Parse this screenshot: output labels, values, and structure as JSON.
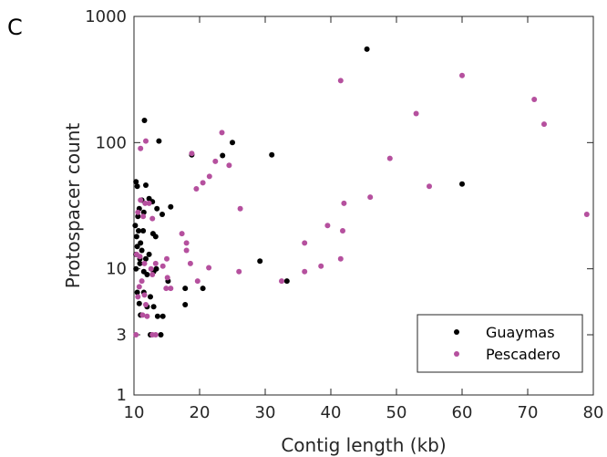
{
  "panel_label": "C",
  "chart_data": {
    "type": "scatter",
    "xlabel": "Contig length (kb)",
    "ylabel": "Protospacer count",
    "xlim": [
      10,
      80
    ],
    "ylim": [
      1,
      1000
    ],
    "yscale": "log",
    "xticks": [
      10,
      20,
      30,
      40,
      50,
      60,
      70,
      80
    ],
    "xtick_labels": [
      "10",
      "20",
      "30",
      "40",
      "50",
      "60",
      "70",
      "80"
    ],
    "yticks": [
      1,
      3,
      10,
      100,
      1000
    ],
    "ytick_labels": [
      "1",
      "3",
      "10",
      "100",
      "1000"
    ],
    "grid": false,
    "legend_position": "bottom-right",
    "series": [
      {
        "name": "Guaymas",
        "color": "#000000",
        "points": [
          [
            45.5,
            550
          ],
          [
            11.6,
            150
          ],
          [
            13.8,
            103
          ],
          [
            25.0,
            100
          ],
          [
            31.0,
            80
          ],
          [
            23.5,
            79
          ],
          [
            18.8,
            80
          ],
          [
            60.0,
            47
          ],
          [
            10.3,
            49
          ],
          [
            10.5,
            45
          ],
          [
            11.8,
            46
          ],
          [
            12.3,
            36
          ],
          [
            12.8,
            34
          ],
          [
            11.2,
            35
          ],
          [
            10.8,
            30
          ],
          [
            11.5,
            28
          ],
          [
            10.6,
            26
          ],
          [
            13.5,
            30
          ],
          [
            14.3,
            27
          ],
          [
            15.6,
            31
          ],
          [
            10.2,
            22
          ],
          [
            10.7,
            20
          ],
          [
            11.4,
            20
          ],
          [
            10.4,
            18
          ],
          [
            11.0,
            16
          ],
          [
            12.9,
            19
          ],
          [
            13.3,
            18
          ],
          [
            10.5,
            15
          ],
          [
            11.2,
            14
          ],
          [
            10.3,
            13
          ],
          [
            10.9,
            12
          ],
          [
            11.8,
            12
          ],
          [
            12.3,
            13
          ],
          [
            10.3,
            10
          ],
          [
            10.9,
            11
          ],
          [
            13.4,
            10
          ],
          [
            11.5,
            9.5
          ],
          [
            12.0,
            9
          ],
          [
            13.0,
            9.5
          ],
          [
            15.2,
            8
          ],
          [
            17.8,
            7
          ],
          [
            20.5,
            7
          ],
          [
            29.2,
            11.5
          ],
          [
            33.3,
            8
          ],
          [
            10.5,
            6.5
          ],
          [
            11.5,
            6.5
          ],
          [
            12.5,
            6
          ],
          [
            10.8,
            5.3
          ],
          [
            12.0,
            5
          ],
          [
            13.0,
            5
          ],
          [
            17.8,
            5.2
          ],
          [
            11.0,
            4.3
          ],
          [
            13.6,
            4.2
          ],
          [
            14.4,
            4.2
          ],
          [
            12.5,
            3
          ],
          [
            14.1,
            3
          ]
        ]
      },
      {
        "name": "Pescadero",
        "color": "#B5509E",
        "points": [
          [
            60.0,
            340
          ],
          [
            41.5,
            310
          ],
          [
            71.0,
            220
          ],
          [
            53.0,
            170
          ],
          [
            72.5,
            140
          ],
          [
            23.4,
            120
          ],
          [
            11.8,
            103
          ],
          [
            11.0,
            90
          ],
          [
            18.8,
            82
          ],
          [
            22.4,
            71
          ],
          [
            49.0,
            75
          ],
          [
            24.5,
            66
          ],
          [
            21.5,
            54
          ],
          [
            20.5,
            48
          ],
          [
            19.5,
            43
          ],
          [
            55.0,
            45
          ],
          [
            46.0,
            37
          ],
          [
            42.0,
            33
          ],
          [
            26.2,
            30
          ],
          [
            79.0,
            27
          ],
          [
            11.0,
            35
          ],
          [
            11.7,
            33
          ],
          [
            12.3,
            33
          ],
          [
            11.4,
            26
          ],
          [
            12.8,
            25
          ],
          [
            10.6,
            28
          ],
          [
            39.5,
            22
          ],
          [
            41.8,
            20
          ],
          [
            17.3,
            19
          ],
          [
            36.0,
            16
          ],
          [
            18.0,
            16
          ],
          [
            41.5,
            12
          ],
          [
            38.5,
            10.5
          ],
          [
            36.0,
            9.5
          ],
          [
            32.5,
            8
          ],
          [
            26.0,
            9.5
          ],
          [
            21.4,
            10.2
          ],
          [
            18.0,
            14
          ],
          [
            18.6,
            11
          ],
          [
            15.0,
            12
          ],
          [
            14.4,
            10.5
          ],
          [
            13.3,
            11
          ],
          [
            12.6,
            10
          ],
          [
            11.6,
            11
          ],
          [
            10.4,
            13
          ],
          [
            10.9,
            12.5
          ],
          [
            19.7,
            8
          ],
          [
            15.1,
            8.5
          ],
          [
            14.9,
            7
          ],
          [
            15.6,
            7
          ],
          [
            12.8,
            9
          ],
          [
            11.2,
            8
          ],
          [
            10.8,
            7.2
          ],
          [
            11.6,
            6.2
          ],
          [
            10.6,
            6
          ],
          [
            11.8,
            5.2
          ],
          [
            11.3,
            4.3
          ],
          [
            12.0,
            4.2
          ],
          [
            10.3,
            3
          ],
          [
            12.8,
            3
          ],
          [
            13.3,
            3
          ]
        ]
      }
    ]
  }
}
